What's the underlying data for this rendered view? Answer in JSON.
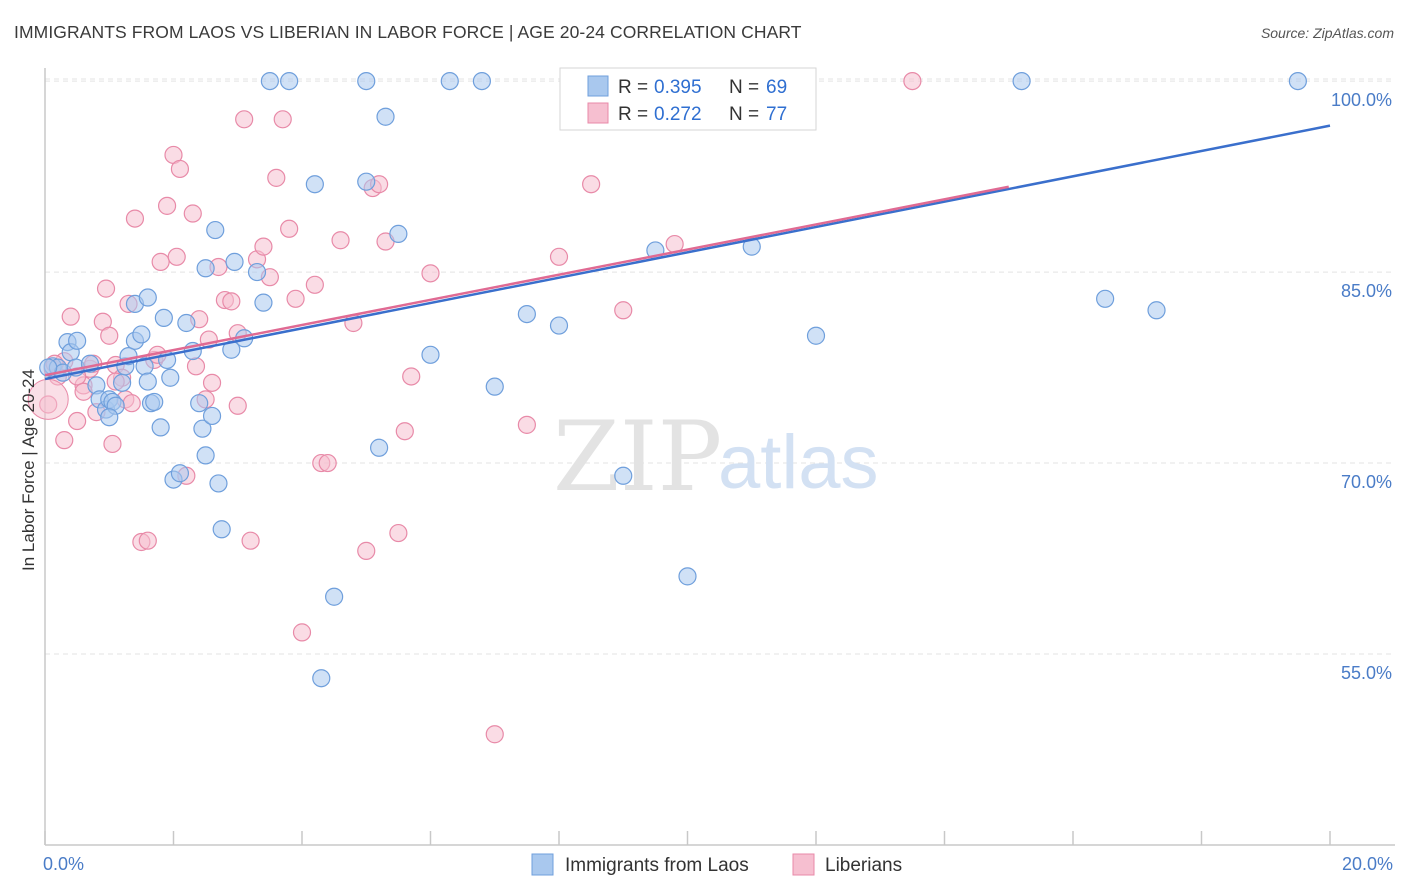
{
  "title": "IMMIGRANTS FROM LAOS VS LIBERIAN IN LABOR FORCE | AGE 20-24 CORRELATION CHART",
  "source": "Source: ZipAtlas.com",
  "watermark": {
    "zip": "ZIP",
    "atlas": "atlas"
  },
  "legend": {
    "rows": [
      {
        "r_label": "R = ",
        "r_value": "0.395",
        "n_label": "N = ",
        "n_value": "69"
      },
      {
        "r_label": "R = ",
        "r_value": "0.272",
        "n_label": "N = ",
        "n_value": "77"
      }
    ]
  },
  "colors": {
    "blue_fill": "#a9c8ee",
    "blue_stroke": "#6f9fdc",
    "blue_line": "#3a6fcc",
    "pink_fill": "#f6bfd0",
    "pink_stroke": "#e88aa8",
    "pink_line": "#e06a93",
    "grid": "#e3e3e3",
    "axis_text": "#4a7cc7"
  },
  "chart_data": {
    "type": "scatter",
    "xlabel": "",
    "ylabel": "In Labor Force | Age 20-24",
    "xlim": [
      0.0,
      20.0
    ],
    "ylim": [
      40.0,
      101.5
    ],
    "x_tick_labels": [
      {
        "value": 0.0,
        "label": "0.0%"
      },
      {
        "value": 20.0,
        "label": "20.0%"
      }
    ],
    "y_tick_labels": [
      {
        "value": 100.0,
        "label": "100.0%"
      },
      {
        "value": 85.0,
        "label": "85.0%"
      },
      {
        "value": 70.0,
        "label": "70.0%"
      },
      {
        "value": 55.0,
        "label": "55.0%"
      }
    ],
    "grid": true,
    "legend_position": "bottom-center",
    "series": [
      {
        "name": "Immigrants from Laos",
        "color": "#a9c8ee",
        "trend": {
          "x": [
            0.0,
            20.0
          ],
          "y": [
            76.6,
            96.5
          ]
        },
        "points": [
          [
            0.12,
            77.6
          ],
          [
            0.2,
            77.5
          ],
          [
            0.28,
            77.1
          ],
          [
            0.35,
            79.5
          ],
          [
            0.4,
            78.7
          ],
          [
            0.48,
            77.5
          ],
          [
            0.5,
            79.6
          ],
          [
            0.7,
            77.8
          ],
          [
            0.8,
            76.1
          ],
          [
            0.85,
            75.0
          ],
          [
            0.95,
            74.2
          ],
          [
            1.0,
            75.0
          ],
          [
            1.05,
            74.8
          ],
          [
            1.1,
            74.5
          ],
          [
            1.2,
            76.3
          ],
          [
            1.25,
            77.6
          ],
          [
            1.3,
            78.4
          ],
          [
            1.4,
            79.6
          ],
          [
            1.5,
            80.1
          ],
          [
            1.55,
            77.6
          ],
          [
            1.6,
            76.4
          ],
          [
            1.65,
            74.7
          ],
          [
            1.7,
            74.8
          ],
          [
            1.8,
            72.8
          ],
          [
            1.85,
            81.4
          ],
          [
            1.9,
            78.1
          ],
          [
            1.95,
            76.7
          ],
          [
            2.0,
            68.7
          ],
          [
            2.1,
            69.2
          ],
          [
            2.2,
            81.0
          ],
          [
            2.3,
            78.8
          ],
          [
            2.4,
            74.7
          ],
          [
            2.45,
            72.7
          ],
          [
            2.5,
            70.6
          ],
          [
            2.6,
            73.7
          ],
          [
            2.65,
            88.3
          ],
          [
            2.7,
            68.4
          ],
          [
            2.75,
            64.8
          ],
          [
            2.9,
            78.9
          ],
          [
            2.95,
            85.8
          ],
          [
            3.1,
            79.8
          ],
          [
            3.3,
            85.0
          ],
          [
            3.4,
            82.6
          ],
          [
            1.4,
            82.5
          ],
          [
            1.6,
            83.0
          ],
          [
            1.0,
            73.6
          ],
          [
            2.5,
            85.3
          ],
          [
            3.5,
            100.0
          ],
          [
            3.8,
            100.0
          ],
          [
            4.2,
            91.9
          ],
          [
            4.5,
            59.5
          ],
          [
            4.3,
            53.1
          ],
          [
            5.0,
            92.1
          ],
          [
            5.2,
            71.2
          ],
          [
            5.3,
            97.2
          ],
          [
            5.5,
            88.0
          ],
          [
            6.0,
            78.5
          ],
          [
            6.3,
            100.0
          ],
          [
            6.8,
            100.0
          ],
          [
            7.0,
            76.0
          ],
          [
            7.5,
            81.7
          ],
          [
            8.0,
            80.8
          ],
          [
            8.5,
            100.0
          ],
          [
            9.0,
            69.0
          ],
          [
            9.5,
            86.7
          ],
          [
            10.0,
            61.1
          ],
          [
            11.0,
            87.0
          ],
          [
            12.0,
            80.0
          ],
          [
            15.2,
            100.0
          ]
        ],
        "extra_points": [
          [
            5.0,
            100.0
          ],
          [
            16.5,
            82.9
          ],
          [
            17.3,
            82.0
          ],
          [
            19.5,
            100.0
          ],
          [
            0.05,
            77.5
          ]
        ]
      },
      {
        "name": "Liberians",
        "color": "#f6bfd0",
        "trend": {
          "x": [
            0.0,
            15.0
          ],
          "y": [
            76.9,
            91.7
          ]
        },
        "points": [
          [
            0.05,
            74.6
          ],
          [
            0.12,
            77.4
          ],
          [
            0.2,
            76.8
          ],
          [
            0.3,
            71.8
          ],
          [
            0.4,
            81.5
          ],
          [
            0.5,
            73.3
          ],
          [
            0.6,
            76.1
          ],
          [
            0.7,
            77.4
          ],
          [
            0.8,
            74.0
          ],
          [
            0.9,
            81.1
          ],
          [
            0.95,
            83.7
          ],
          [
            1.0,
            80.0
          ],
          [
            1.05,
            71.5
          ],
          [
            1.1,
            77.7
          ],
          [
            1.2,
            76.7
          ],
          [
            1.3,
            82.5
          ],
          [
            1.4,
            89.2
          ],
          [
            1.5,
            63.8
          ],
          [
            1.6,
            63.9
          ],
          [
            1.7,
            78.1
          ],
          [
            1.8,
            85.8
          ],
          [
            1.9,
            90.2
          ],
          [
            2.0,
            94.2
          ],
          [
            2.05,
            86.2
          ],
          [
            2.1,
            93.1
          ],
          [
            2.2,
            69.0
          ],
          [
            2.3,
            89.6
          ],
          [
            2.4,
            81.3
          ],
          [
            2.5,
            75.0
          ],
          [
            2.55,
            79.7
          ],
          [
            2.6,
            76.3
          ],
          [
            2.7,
            85.4
          ],
          [
            2.8,
            82.8
          ],
          [
            2.9,
            82.7
          ],
          [
            3.0,
            80.2
          ],
          [
            3.1,
            97.0
          ],
          [
            3.2,
            63.9
          ],
          [
            3.3,
            86.0
          ],
          [
            3.4,
            87.0
          ],
          [
            3.5,
            84.6
          ],
          [
            3.6,
            92.4
          ],
          [
            3.7,
            97.0
          ],
          [
            3.8,
            88.4
          ],
          [
            3.9,
            82.9
          ],
          [
            4.0,
            56.7
          ],
          [
            4.2,
            84.0
          ],
          [
            4.3,
            70.0
          ],
          [
            4.4,
            70.0
          ],
          [
            4.6,
            87.5
          ],
          [
            4.8,
            81.0
          ],
          [
            5.0,
            63.1
          ],
          [
            5.1,
            91.6
          ],
          [
            5.2,
            91.9
          ],
          [
            5.3,
            87.4
          ],
          [
            5.5,
            64.5
          ],
          [
            5.6,
            72.5
          ],
          [
            5.7,
            76.8
          ],
          [
            6.0,
            84.9
          ],
          [
            7.0,
            48.7
          ],
          [
            7.5,
            73.0
          ],
          [
            8.0,
            86.2
          ],
          [
            8.5,
            91.9
          ],
          [
            9.0,
            82.0
          ],
          [
            9.8,
            87.2
          ],
          [
            11.0,
            100.0
          ],
          [
            13.5,
            100.0
          ],
          [
            0.3,
            78.0
          ],
          [
            0.5,
            76.8
          ],
          [
            0.6,
            75.6
          ],
          [
            0.75,
            77.8
          ],
          [
            1.1,
            76.4
          ],
          [
            1.25,
            75.0
          ],
          [
            1.35,
            74.7
          ],
          [
            1.75,
            78.5
          ],
          [
            2.35,
            77.6
          ],
          [
            3.0,
            74.5
          ],
          [
            0.15,
            77.8
          ]
        ]
      }
    ]
  },
  "bottom_legend": [
    {
      "label": "Immigrants from Laos",
      "color": "#a9c8ee"
    },
    {
      "label": "Liberians",
      "color": "#f6bfd0"
    }
  ]
}
